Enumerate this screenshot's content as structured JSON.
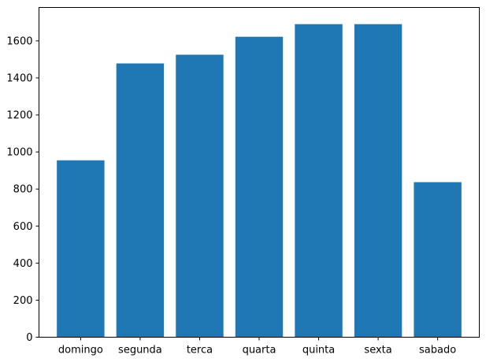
{
  "chart_data": {
    "type": "bar",
    "title": "",
    "xlabel": "",
    "ylabel": "",
    "categories": [
      "domingo",
      "segunda",
      "terca",
      "quarta",
      "quinta",
      "sexta",
      "sabado"
    ],
    "values": [
      955,
      1478,
      1525,
      1622,
      1690,
      1690,
      837
    ],
    "ylim": [
      0,
      1780
    ],
    "yticks": [
      0,
      200,
      400,
      600,
      800,
      1000,
      1200,
      1400,
      1600
    ],
    "bar_color": "#1f77b4",
    "grid": false,
    "legend": "none"
  }
}
